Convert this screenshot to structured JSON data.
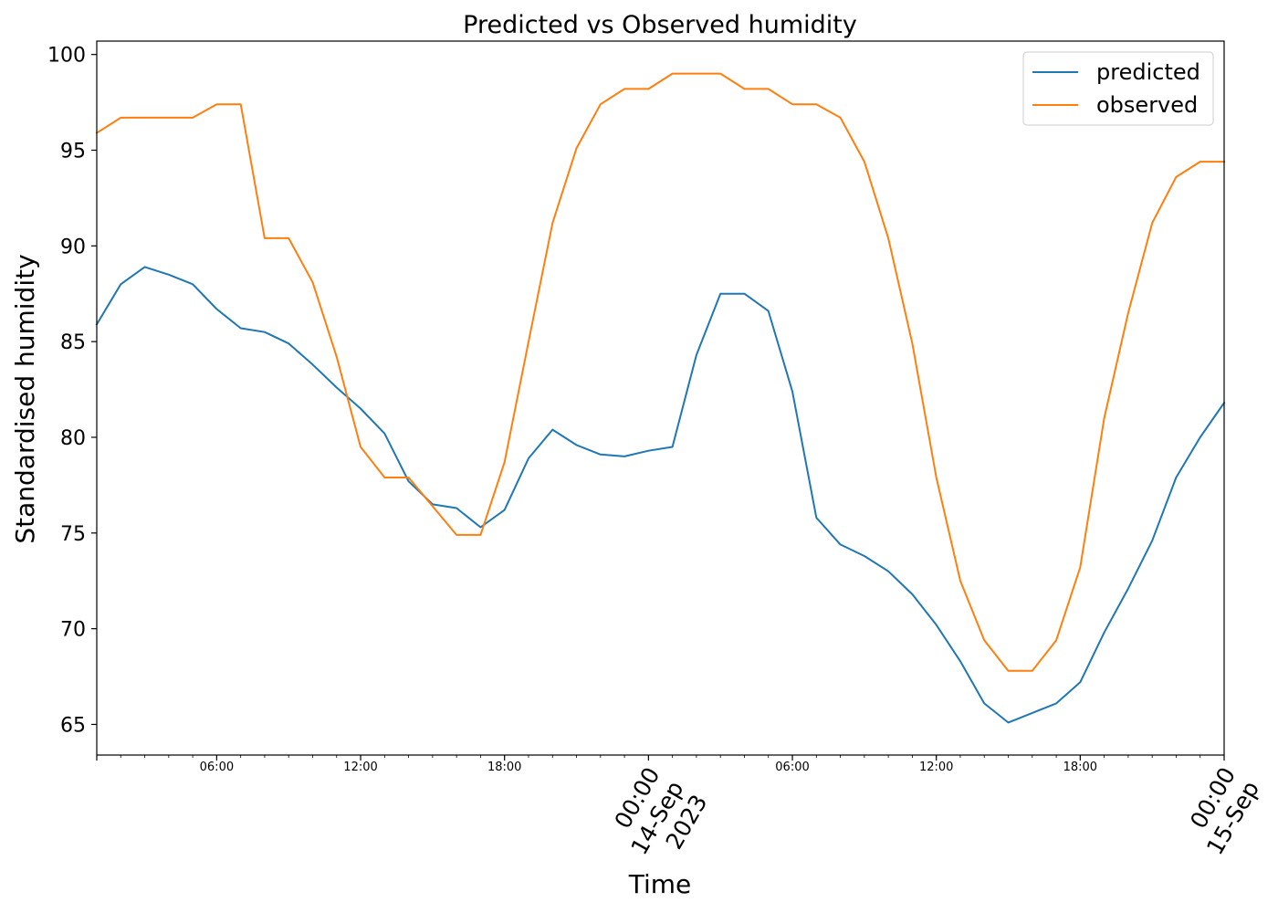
{
  "chart_data": {
    "type": "line",
    "title": "Predicted vs Observed humidity",
    "xlabel": "Time",
    "ylabel": "Standardised humidity",
    "x_start": "2023-09-13 01:00",
    "x_end": "2023-09-15 00:00",
    "x_step": "1h",
    "ylim": [
      63.4,
      100.7
    ],
    "yticks": [
      65,
      70,
      75,
      80,
      85,
      90,
      95,
      100
    ],
    "grid": false,
    "legend_position": "top-right",
    "x_tick_labels": [
      {
        "time": "2023-09-13 06:00",
        "label": [
          "06:00"
        ],
        "major": false
      },
      {
        "time": "2023-09-13 12:00",
        "label": [
          "12:00"
        ],
        "major": false
      },
      {
        "time": "2023-09-13 18:00",
        "label": [
          "18:00"
        ],
        "major": false
      },
      {
        "time": "2023-09-14 00:00",
        "label": [
          "00:00",
          "14-Sep",
          "2023"
        ],
        "major": true
      },
      {
        "time": "2023-09-14 06:00",
        "label": [
          "06:00"
        ],
        "major": false
      },
      {
        "time": "2023-09-14 12:00",
        "label": [
          "12:00"
        ],
        "major": false
      },
      {
        "time": "2023-09-14 18:00",
        "label": [
          "18:00"
        ],
        "major": false
      },
      {
        "time": "2023-09-15 00:00",
        "label": [
          "00:00",
          "15-Sep"
        ],
        "major": true
      }
    ],
    "series": [
      {
        "name": "predicted",
        "color": "#1f77b4",
        "values": [
          85.9,
          88.0,
          88.9,
          88.5,
          88.0,
          86.7,
          85.7,
          85.5,
          84.9,
          83.8,
          82.6,
          81.5,
          80.2,
          77.7,
          76.5,
          76.3,
          75.3,
          76.2,
          78.9,
          80.4,
          79.6,
          79.1,
          79.0,
          79.3,
          79.5,
          84.3,
          87.5,
          87.5,
          86.6,
          82.4,
          75.8,
          74.4,
          73.8,
          73.0,
          71.8,
          70.2,
          68.3,
          66.1,
          65.1,
          65.6,
          66.1,
          67.2,
          69.8,
          72.1,
          74.6,
          77.9,
          80.0,
          81.8
        ]
      },
      {
        "name": "observed",
        "color": "#ff7f0e",
        "values": [
          95.9,
          96.7,
          96.7,
          96.7,
          96.7,
          97.4,
          97.4,
          90.4,
          90.4,
          88.1,
          84.2,
          79.5,
          77.9,
          77.9,
          76.4,
          74.9,
          74.9,
          78.7,
          85.0,
          91.2,
          95.1,
          97.4,
          98.2,
          98.2,
          99.0,
          99.0,
          99.0,
          98.2,
          98.2,
          97.4,
          97.4,
          96.7,
          94.4,
          90.4,
          84.9,
          77.9,
          72.5,
          69.4,
          67.8,
          67.8,
          69.4,
          73.2,
          81.0,
          86.5,
          91.2,
          93.6,
          94.4,
          94.4
        ]
      }
    ]
  }
}
